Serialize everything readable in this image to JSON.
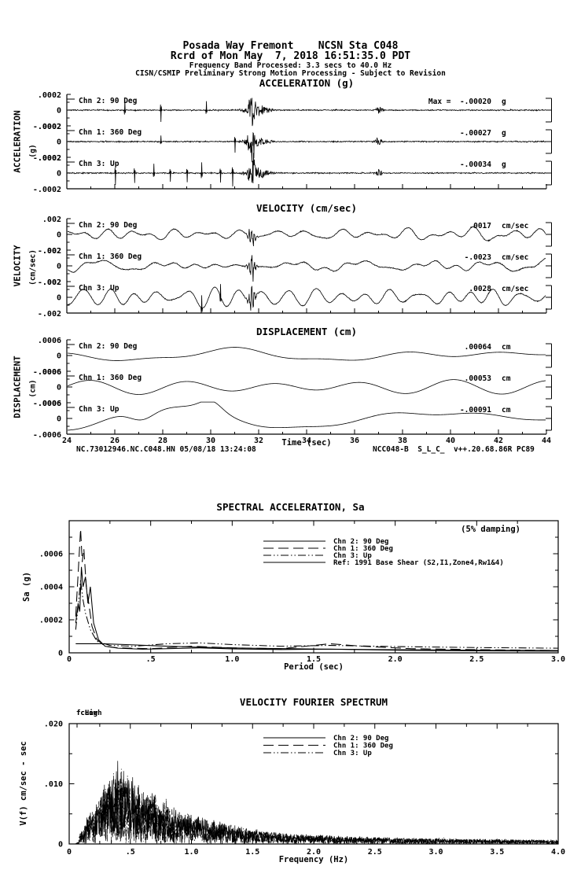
{
  "header": {
    "line1": "Posada Way Fremont    NCSN Sta C048",
    "line2": "Rcrd of Mon May  7, 2018 16:51:35.0 PDT",
    "line3": "Frequency Band Processed: 3.3 secs to 40.0 Hz",
    "line4": "CISN/CSMIP Preliminary Strong Motion Processing - Subject to Revision"
  },
  "footer": {
    "left": "NC.73012946.NC.C048.HN 05/08/18 13:24:08",
    "right": "NCC048-B  S_L_C_  v++.20.68.86R PC89"
  },
  "colors": {
    "ink": "#000000",
    "paper": "#ffffff"
  },
  "chart_data": [
    {
      "type": "line",
      "group": "time-series",
      "title": "ACCELERATION (g)",
      "ylabel": "ACCELERATION",
      "ylabel_units": "(g)",
      "ylim": [
        -0.0002,
        0.0002
      ],
      "ytick_labels": [
        ".0002",
        "0",
        "-.0002"
      ],
      "xlim_sec": [
        24,
        44
      ],
      "channels": [
        {
          "name": "Chn 2: 90 Deg",
          "peak_label": "Max =  -.00020",
          "unit": "g",
          "peak_value": -0.0002,
          "spike_times_sec": [
            26.4,
            27.9,
            29.8
          ],
          "main_burst_sec": 31.7,
          "secondary_burst_sec": 37.0
        },
        {
          "name": "Chn 1: 360 Deg",
          "peak_label": "-.00027",
          "unit": "g",
          "peak_value": -0.00027,
          "spike_times_sec": [
            27.9,
            31.0
          ],
          "main_burst_sec": 31.7,
          "secondary_burst_sec": 37.0
        },
        {
          "name": "Chn 3: Up",
          "peak_label": "-.00034",
          "unit": "g",
          "peak_value": -0.00034,
          "spike_times_sec": [
            26.0,
            26.8,
            27.6,
            28.3,
            29.0,
            29.6,
            30.4,
            30.9
          ],
          "main_burst_sec": 31.7,
          "secondary_burst_sec": 37.0
        }
      ]
    },
    {
      "type": "line",
      "group": "time-series",
      "title": "VELOCITY (cm/sec)",
      "ylabel": "VELOCITY",
      "ylabel_units": "(cm/sec)",
      "ylim": [
        -0.002,
        0.002
      ],
      "ytick_labels": [
        ".002",
        "0",
        "-.002"
      ],
      "xlim_sec": [
        24,
        44
      ],
      "channels": [
        {
          "name": "Chn 2: 90 Deg",
          "peak_label": ".0017",
          "unit": "cm/sec",
          "peak_value": 0.0017,
          "spike_times_sec": [],
          "main_burst_sec": 31.7
        },
        {
          "name": "Chn 1: 360 Deg",
          "peak_label": "-.0023",
          "unit": "cm/sec",
          "peak_value": -0.0023,
          "spike_times_sec": [],
          "main_burst_sec": 31.7
        },
        {
          "name": "Chn 3: Up",
          "peak_label": ".0028",
          "unit": "cm/sec",
          "peak_value": 0.0028,
          "spike_times_sec": [
            29.6,
            30.4
          ],
          "main_burst_sec": 31.7
        }
      ]
    },
    {
      "type": "line",
      "group": "time-series",
      "title": "DISPLACEMENT (cm)",
      "ylabel": "DISPLACEMENT",
      "ylabel_units": "(cm)",
      "ylim": [
        -0.0006,
        0.0006
      ],
      "ytick_labels": [
        ".0006",
        "0",
        "-.0006"
      ],
      "xlim_sec": [
        24,
        44
      ],
      "xtick_labels": [
        "24",
        "26",
        "28",
        "30",
        "32",
        "34",
        "36",
        "38",
        "40",
        "42",
        "44"
      ],
      "xlabel": "Time (sec)",
      "channels": [
        {
          "name": "Chn 2: 90 Deg",
          "peak_label": ".00064",
          "unit": "cm",
          "peak_value": 0.00064,
          "spike_times_sec": []
        },
        {
          "name": "Chn 1: 360 Deg",
          "peak_label": ".00053",
          "unit": "cm",
          "peak_value": 0.00053,
          "spike_times_sec": []
        },
        {
          "name": "Chn 3: Up",
          "peak_label": "-.00091",
          "unit": "cm",
          "peak_value": -0.00091,
          "spike_times_sec": []
        }
      ]
    },
    {
      "type": "line",
      "title": "SPECTRAL ACCELERATION, Sa",
      "xlabel": "Period (sec)",
      "ylabel": "Sa (g)",
      "xlim": [
        0,
        3.0
      ],
      "ylim": [
        0,
        0.0008
      ],
      "xtick_labels": [
        "0",
        ".5",
        "1.0",
        "1.5",
        "2.0",
        "2.5",
        "3.0"
      ],
      "ytick_labels": [
        "0",
        ".0002",
        ".0004",
        ".0006"
      ],
      "annotation": "(5% damping)",
      "series": [
        {
          "name": "Chn 2: 90 Deg",
          "style": "solid",
          "points": [
            [
              0.04,
              0.00018
            ],
            [
              0.055,
              0.0003
            ],
            [
              0.065,
              0.00025
            ],
            [
              0.075,
              0.00052
            ],
            [
              0.085,
              0.0004
            ],
            [
              0.1,
              0.00046
            ],
            [
              0.115,
              0.0003
            ],
            [
              0.13,
              0.0004
            ],
            [
              0.15,
              0.00018
            ],
            [
              0.18,
              8e-05
            ],
            [
              0.22,
              4e-05
            ],
            [
              0.3,
              2.8e-05
            ],
            [
              0.45,
              2.2e-05
            ],
            [
              0.6,
              2.5e-05
            ],
            [
              0.8,
              3e-05
            ],
            [
              1.0,
              2.4e-05
            ],
            [
              1.3,
              2e-05
            ],
            [
              1.6,
              2.2e-05
            ],
            [
              2.0,
              1.6e-05
            ],
            [
              2.5,
              1.2e-05
            ],
            [
              3.0,
              1e-05
            ]
          ]
        },
        {
          "name": "Chn 1: 360 Deg",
          "style": "longdash",
          "points": [
            [
              0.04,
              0.00022
            ],
            [
              0.055,
              0.00048
            ],
            [
              0.07,
              0.00075
            ],
            [
              0.08,
              0.00055
            ],
            [
              0.09,
              0.00063
            ],
            [
              0.105,
              0.0004
            ],
            [
              0.12,
              0.0003
            ],
            [
              0.14,
              0.00016
            ],
            [
              0.17,
              8e-05
            ],
            [
              0.22,
              4e-05
            ],
            [
              0.3,
              3e-05
            ],
            [
              0.5,
              2.5e-05
            ],
            [
              0.75,
              4e-05
            ],
            [
              1.0,
              3e-05
            ],
            [
              1.3,
              2.5e-05
            ],
            [
              1.6,
              5.5e-05
            ],
            [
              1.8,
              4e-05
            ],
            [
              2.1,
              2.5e-05
            ],
            [
              2.6,
              1.8e-05
            ],
            [
              3.0,
              1.4e-05
            ]
          ]
        },
        {
          "name": "Chn 3: Up",
          "style": "dashdotdot",
          "points": [
            [
              0.04,
              0.00014
            ],
            [
              0.055,
              0.00028
            ],
            [
              0.07,
              0.00044
            ],
            [
              0.085,
              0.00032
            ],
            [
              0.1,
              0.00024
            ],
            [
              0.13,
              0.00014
            ],
            [
              0.17,
              7e-05
            ],
            [
              0.25,
              4.5e-05
            ],
            [
              0.4,
              4e-05
            ],
            [
              0.6,
              5.5e-05
            ],
            [
              0.8,
              6e-05
            ],
            [
              1.0,
              5e-05
            ],
            [
              1.3,
              4e-05
            ],
            [
              1.6,
              4.5e-05
            ],
            [
              2.0,
              3.8e-05
            ],
            [
              2.5,
              3.2e-05
            ],
            [
              3.0,
              2.8e-05
            ]
          ]
        },
        {
          "name": "Ref: 1991 Base Shear (S2,I1,Zone4,Rw1&4)",
          "style": "solid",
          "points": [
            [
              0.04,
              5.5e-05
            ],
            [
              0.2,
              5.5e-05
            ],
            [
              0.35,
              5e-05
            ],
            [
              0.55,
              4.2e-05
            ],
            [
              0.8,
              3.4e-05
            ],
            [
              1.1,
              2.8e-05
            ],
            [
              1.5,
              2.3e-05
            ],
            [
              2.0,
              1.9e-05
            ],
            [
              2.5,
              1.6e-05
            ],
            [
              3.0,
              1.4e-05
            ]
          ]
        }
      ]
    },
    {
      "type": "line",
      "title": "VELOCITY FOURIER SPECTRUM",
      "xlabel": "Frequency (Hz)",
      "ylabel": "V(f)  cm/sec - sec",
      "xlim": [
        0,
        4.0
      ],
      "ylim": [
        0,
        0.02
      ],
      "xtick_labels": [
        "0",
        ".5",
        "1.0",
        "1.5",
        "2.0",
        "2.5",
        "3.0",
        "3.5",
        "4.0"
      ],
      "ytick_labels": [
        "0",
        ".010",
        ".020"
      ],
      "fc_markers": [
        "fcLow",
        "fcHigh"
      ],
      "series": [
        {
          "name": "Chn 2: 90 Deg",
          "style": "solid"
        },
        {
          "name": "Chn 1: 360 Deg",
          "style": "longdash"
        },
        {
          "name": "Chn 3: Up",
          "style": "dashdotdot"
        }
      ],
      "envelope_points": [
        [
          0.02,
          0.0001
        ],
        [
          0.05,
          0.0002
        ],
        [
          0.1,
          0.002
        ],
        [
          0.15,
          0.004
        ],
        [
          0.2,
          0.0055
        ],
        [
          0.25,
          0.007
        ],
        [
          0.3,
          0.0095
        ],
        [
          0.35,
          0.0115
        ],
        [
          0.4,
          0.012
        ],
        [
          0.45,
          0.0105
        ],
        [
          0.5,
          0.011
        ],
        [
          0.55,
          0.0095
        ],
        [
          0.6,
          0.008
        ],
        [
          0.7,
          0.0075
        ],
        [
          0.8,
          0.006
        ],
        [
          0.9,
          0.005
        ],
        [
          1.0,
          0.0045
        ],
        [
          1.2,
          0.0035
        ],
        [
          1.4,
          0.0025
        ],
        [
          1.6,
          0.002
        ],
        [
          1.8,
          0.0016
        ],
        [
          2.0,
          0.0014
        ],
        [
          2.4,
          0.0011
        ],
        [
          2.8,
          0.0009
        ],
        [
          3.2,
          0.0008
        ],
        [
          3.6,
          0.0007
        ],
        [
          4.0,
          0.0006
        ]
      ]
    }
  ]
}
